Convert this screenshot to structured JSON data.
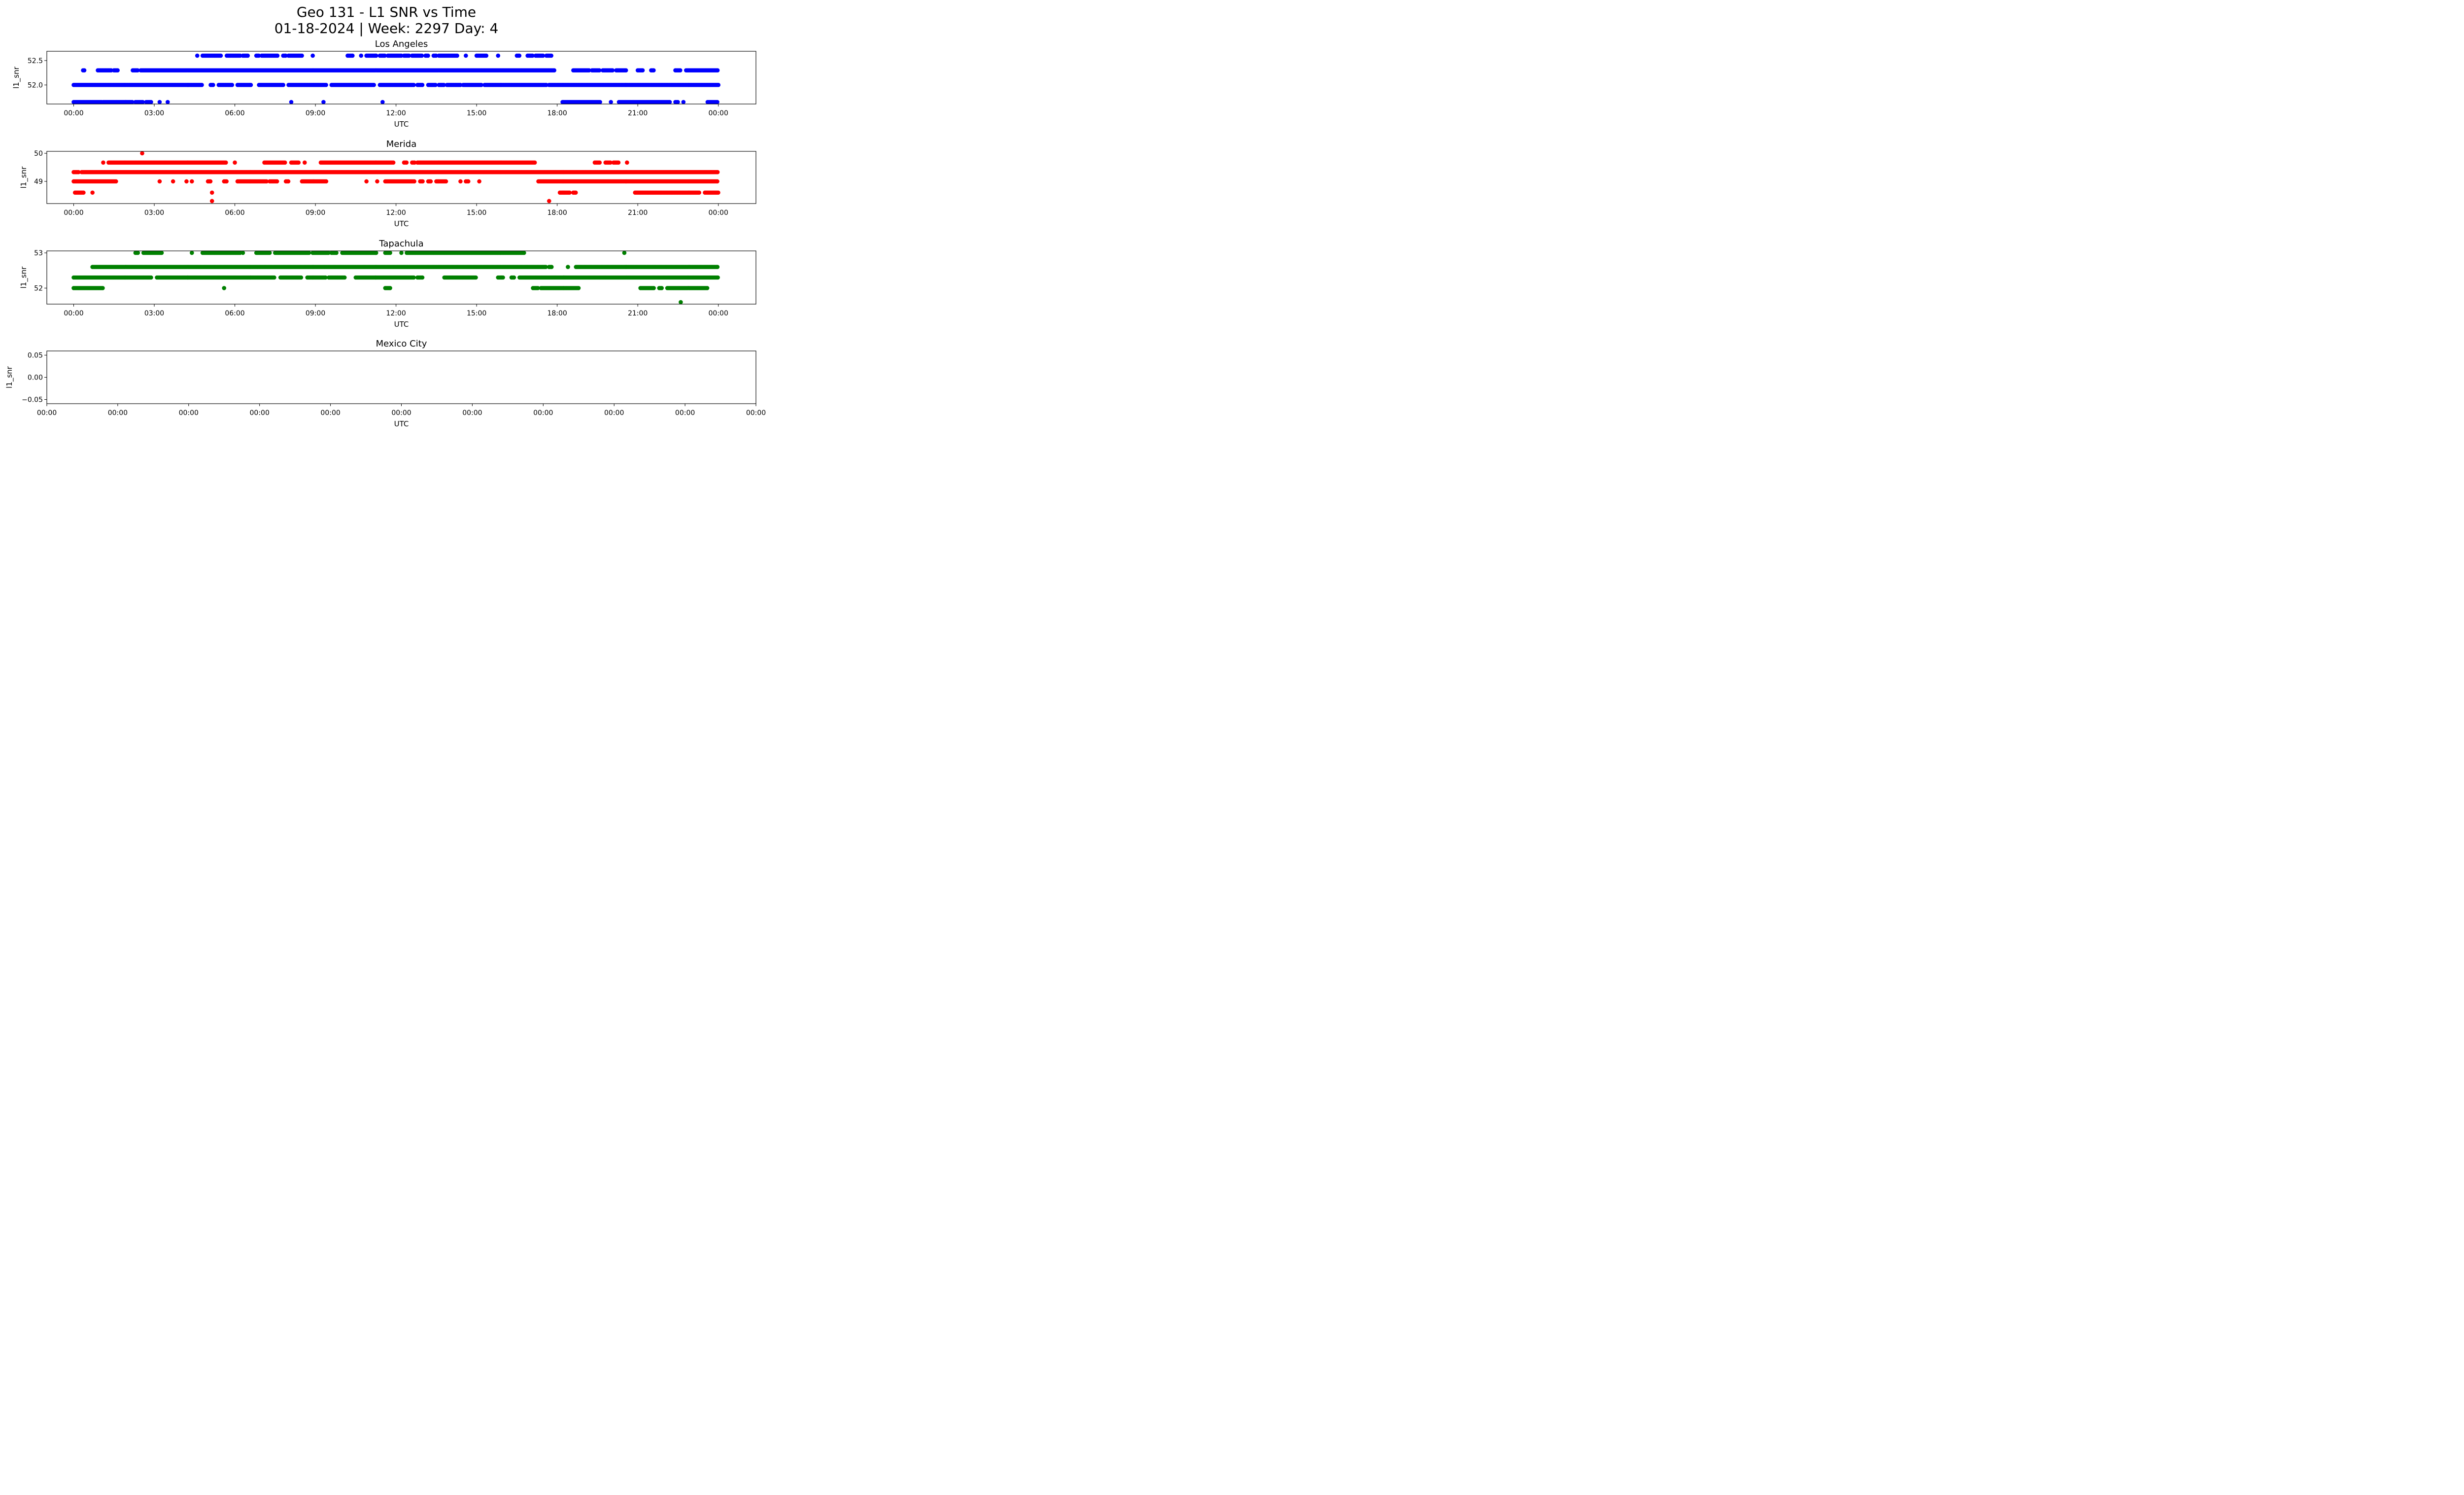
{
  "figure": {
    "title_line1": "Geo 131 - L1 SNR vs Time",
    "title_line2": "01-18-2024 | Week: 2297 Day: 4"
  },
  "chart_data": [
    {
      "type": "scatter",
      "title": "Los Angeles",
      "xlabel": "UTC",
      "ylabel": "l1_snr",
      "color": "#0000ff",
      "xlim": [
        -1.0,
        25.4
      ],
      "ylim": [
        51.65,
        52.65
      ],
      "x_ticks": [
        "00:00",
        "03:00",
        "06:00",
        "09:00",
        "12:00",
        "15:00",
        "18:00",
        "21:00",
        "00:00"
      ],
      "x_tick_values": [
        0,
        3,
        6,
        9,
        12,
        15,
        18,
        21,
        24
      ],
      "y_ticks": [
        "52.0",
        "52.5"
      ],
      "y_tick_values": [
        52.0,
        52.5
      ],
      "levels": [
        {
          "y": 52.6,
          "segments": [
            [
              4.6,
              4.6
            ],
            [
              4.8,
              5.5
            ],
            [
              5.7,
              6.2
            ],
            [
              6.3,
              6.5
            ],
            [
              6.8,
              6.9
            ],
            [
              7.0,
              7.6
            ],
            [
              7.8,
              7.9
            ],
            [
              8.0,
              8.5
            ],
            [
              8.9,
              8.9
            ],
            [
              10.2,
              10.4
            ],
            [
              10.7,
              10.7
            ],
            [
              10.9,
              11.3
            ],
            [
              11.4,
              11.6
            ],
            [
              11.7,
              12.2
            ],
            [
              12.3,
              12.5
            ],
            [
              12.6,
              13.0
            ],
            [
              13.1,
              13.2
            ],
            [
              13.4,
              13.5
            ],
            [
              13.6,
              14.3
            ],
            [
              14.6,
              14.6
            ],
            [
              15.0,
              15.4
            ],
            [
              15.8,
              15.8
            ],
            [
              16.5,
              16.6
            ],
            [
              16.9,
              17.1
            ],
            [
              17.2,
              17.5
            ],
            [
              17.6,
              17.8
            ]
          ]
        },
        {
          "y": 52.3,
          "segments": [
            [
              0.35,
              0.4
            ],
            [
              0.9,
              1.4
            ],
            [
              1.5,
              1.65
            ],
            [
              2.2,
              2.4
            ],
            [
              2.5,
              17.9
            ],
            [
              18.6,
              19.2
            ],
            [
              19.3,
              19.6
            ],
            [
              19.7,
              20.1
            ],
            [
              20.2,
              20.6
            ],
            [
              21.0,
              21.2
            ],
            [
              21.5,
              21.6
            ],
            [
              22.4,
              22.6
            ],
            [
              22.8,
              24.0
            ]
          ]
        },
        {
          "y": 52.0,
          "segments": [
            [
              0.0,
              4.8
            ],
            [
              5.1,
              5.2
            ],
            [
              5.4,
              5.9
            ],
            [
              6.1,
              6.6
            ],
            [
              6.9,
              7.8
            ],
            [
              8.0,
              9.4
            ],
            [
              9.6,
              11.2
            ],
            [
              11.4,
              12.7
            ],
            [
              12.8,
              13.0
            ],
            [
              13.2,
              13.5
            ],
            [
              13.6,
              13.8
            ],
            [
              13.9,
              14.4
            ],
            [
              14.5,
              15.2
            ],
            [
              15.3,
              17.6
            ],
            [
              17.7,
              24.0
            ]
          ]
        },
        {
          "y": 51.65,
          "segments": [
            [
              0.0,
              1.05
            ],
            [
              1.1,
              2.2
            ],
            [
              2.3,
              2.6
            ],
            [
              2.7,
              2.9
            ],
            [
              3.2,
              3.2
            ],
            [
              3.5,
              3.5
            ],
            [
              8.1,
              8.1
            ],
            [
              9.3,
              9.3
            ],
            [
              11.5,
              11.5
            ],
            [
              18.2,
              19.6
            ],
            [
              20.0,
              20.0
            ],
            [
              20.3,
              22.2
            ],
            [
              22.4,
              22.5
            ],
            [
              22.7,
              22.7
            ],
            [
              23.6,
              24.0
            ]
          ]
        }
      ]
    },
    {
      "type": "scatter",
      "title": "Merida",
      "xlabel": "UTC",
      "ylabel": "l1_snr",
      "color": "#ff0000",
      "xlim": [
        -1.0,
        25.4
      ],
      "ylim": [
        48.28,
        50.0
      ],
      "x_ticks": [
        "00:00",
        "03:00",
        "06:00",
        "09:00",
        "12:00",
        "15:00",
        "18:00",
        "21:00",
        "00:00"
      ],
      "x_tick_values": [
        0,
        3,
        6,
        9,
        12,
        15,
        18,
        21,
        24
      ],
      "y_ticks": [
        "49",
        "50"
      ],
      "y_tick_values": [
        49,
        50
      ],
      "levels": [
        {
          "y": 50.0,
          "segments": [
            [
              2.55,
              2.55
            ]
          ]
        },
        {
          "y": 49.67,
          "segments": [
            [
              1.1,
              1.1
            ],
            [
              1.3,
              5.7
            ],
            [
              6.0,
              6.0
            ],
            [
              7.1,
              7.9
            ],
            [
              8.1,
              8.4
            ],
            [
              8.6,
              8.6
            ],
            [
              9.2,
              11.9
            ],
            [
              12.3,
              12.4
            ],
            [
              12.6,
              12.7
            ],
            [
              12.8,
              17.2
            ],
            [
              19.4,
              19.6
            ],
            [
              19.8,
              20.0
            ],
            [
              20.1,
              20.3
            ],
            [
              20.6,
              20.6
            ]
          ]
        },
        {
          "y": 49.33,
          "segments": [
            [
              0.0,
              0.2
            ],
            [
              0.3,
              24.0
            ]
          ]
        },
        {
          "y": 49.0,
          "segments": [
            [
              0.0,
              1.6
            ],
            [
              3.2,
              3.2
            ],
            [
              3.7,
              3.7
            ],
            [
              4.2,
              4.2
            ],
            [
              4.4,
              4.4
            ],
            [
              5.0,
              5.1
            ],
            [
              5.6,
              5.7
            ],
            [
              6.1,
              7.2
            ],
            [
              7.3,
              7.6
            ],
            [
              7.9,
              8.0
            ],
            [
              8.5,
              9.4
            ],
            [
              10.9,
              10.9
            ],
            [
              11.3,
              11.3
            ],
            [
              11.6,
              12.7
            ],
            [
              12.9,
              13.0
            ],
            [
              13.2,
              13.3
            ],
            [
              13.5,
              13.9
            ],
            [
              14.4,
              14.4
            ],
            [
              14.6,
              14.7
            ],
            [
              15.1,
              15.1
            ],
            [
              17.3,
              24.0
            ]
          ]
        },
        {
          "y": 48.6,
          "segments": [
            [
              0.05,
              0.4
            ],
            [
              0.7,
              0.7
            ],
            [
              5.15,
              5.15
            ],
            [
              18.1,
              18.5
            ],
            [
              18.6,
              18.7
            ],
            [
              20.9,
              23.3
            ],
            [
              23.5,
              24.0
            ]
          ]
        },
        {
          "y": 48.3,
          "segments": [
            [
              5.15,
              5.15
            ],
            [
              17.7,
              17.7
            ]
          ]
        }
      ]
    },
    {
      "type": "scatter",
      "title": "Tapachula",
      "xlabel": "UTC",
      "ylabel": "l1_snr",
      "color": "#008000",
      "xlim": [
        -1.0,
        25.4
      ],
      "ylim": [
        51.6,
        53.0
      ],
      "x_ticks": [
        "00:00",
        "03:00",
        "06:00",
        "09:00",
        "12:00",
        "15:00",
        "18:00",
        "21:00",
        "00:00"
      ],
      "x_tick_values": [
        0,
        3,
        6,
        9,
        12,
        15,
        18,
        21,
        24
      ],
      "y_ticks": [
        "52",
        "53"
      ],
      "y_tick_values": [
        52,
        53
      ],
      "levels": [
        {
          "y": 53.0,
          "segments": [
            [
              2.3,
              2.4
            ],
            [
              2.6,
              3.3
            ],
            [
              4.4,
              4.4
            ],
            [
              4.8,
              6.2
            ],
            [
              6.3,
              6.3
            ],
            [
              6.8,
              7.3
            ],
            [
              7.5,
              8.8
            ],
            [
              8.9,
              9.5
            ],
            [
              9.6,
              9.8
            ],
            [
              10.0,
              11.3
            ],
            [
              11.6,
              11.8
            ],
            [
              12.2,
              12.2
            ],
            [
              12.4,
              16.8
            ],
            [
              20.5,
              20.5
            ]
          ]
        },
        {
          "y": 52.6,
          "segments": [
            [
              0.7,
              17.6
            ],
            [
              17.7,
              17.8
            ],
            [
              18.4,
              18.4
            ],
            [
              18.7,
              24.0
            ]
          ]
        },
        {
          "y": 52.3,
          "segments": [
            [
              0.0,
              2.9
            ],
            [
              3.1,
              7.5
            ],
            [
              7.7,
              8.5
            ],
            [
              8.7,
              9.4
            ],
            [
              9.5,
              10.1
            ],
            [
              10.5,
              12.7
            ],
            [
              12.8,
              13.0
            ],
            [
              13.8,
              15.0
            ],
            [
              15.8,
              16.0
            ],
            [
              16.3,
              16.4
            ],
            [
              16.6,
              24.0
            ]
          ]
        },
        {
          "y": 52.0,
          "segments": [
            [
              0.0,
              1.1
            ],
            [
              5.6,
              5.6
            ],
            [
              11.6,
              11.8
            ],
            [
              17.1,
              17.3
            ],
            [
              17.4,
              18.8
            ],
            [
              21.1,
              21.6
            ],
            [
              21.8,
              21.9
            ],
            [
              22.1,
              23.6
            ]
          ]
        },
        {
          "y": 51.6,
          "segments": [
            [
              22.6,
              22.6
            ]
          ]
        }
      ]
    },
    {
      "type": "scatter",
      "title": "Mexico City",
      "xlabel": "UTC",
      "ylabel": "l1_snr",
      "color": "#ffffff",
      "xlim": [
        -0.055,
        0.055
      ],
      "ylim": [
        -0.055,
        0.055
      ],
      "x_ticks": [
        "00:00",
        "00:00",
        "00:00",
        "00:00",
        "00:00",
        "00:00",
        "00:00",
        "00:00",
        "00:00",
        "00:00",
        "00:00"
      ],
      "y_ticks": [
        "−0.05",
        "0.00",
        "0.05"
      ],
      "y_tick_values": [
        -0.05,
        0.0,
        0.05
      ],
      "levels": []
    }
  ]
}
